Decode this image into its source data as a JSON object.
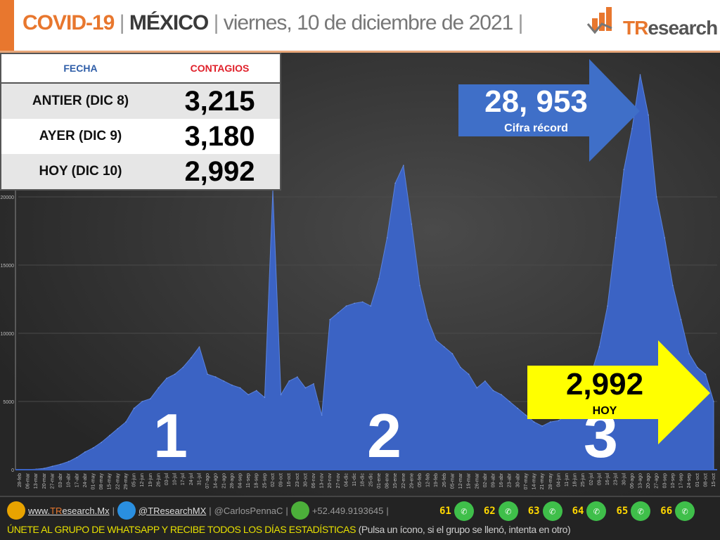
{
  "header": {
    "title_covid": "COVID-19",
    "sep": "|",
    "title_country": "MÉXICO",
    "date": "viernes, 10 de diciembre de 2021",
    "logo_text": "TResearch"
  },
  "table": {
    "col_date": "FECHA",
    "col_cases": "CONTAGIOS",
    "rows": [
      {
        "label": "ANTIER (DIC 8)",
        "value": "3,215"
      },
      {
        "label": "AYER (DIC 9)",
        "value": "3,180"
      },
      {
        "label": "HOY (DIC 10)",
        "value": "2,992"
      }
    ]
  },
  "annotations": {
    "record_value": "28, 953",
    "record_label": "Cifra récord",
    "today_value": "2,992",
    "today_label": "HOY",
    "wave1": "1",
    "wave2": "2",
    "wave3": "3"
  },
  "colors": {
    "accent": "#e8772e",
    "area": "#3b63c4",
    "record_arrow": "#3f6fc8",
    "today_arrow": "#ffff00"
  },
  "chart_data": {
    "type": "area",
    "title": "",
    "xlabel": "",
    "ylabel": "",
    "ylim": [
      0,
      30000
    ],
    "grid": true,
    "yticks": [
      0,
      5000,
      10000,
      15000,
      20000
    ],
    "categories": [
      "28-feb",
      "06-mar",
      "13-mar",
      "20-mar",
      "27-mar",
      "03-abr",
      "10-abr",
      "17-abr",
      "24-abr",
      "01-may",
      "08-may",
      "15-may",
      "22-may",
      "29-may",
      "05-jun",
      "12-jun",
      "19-jun",
      "26-jun",
      "03-jul",
      "10-jul",
      "17-jul",
      "24-jul",
      "31-jul",
      "07-ago",
      "14-ago",
      "21-ago",
      "28-ago",
      "04-sep",
      "11-sep",
      "18-sep",
      "25-sep",
      "02-oct",
      "09-oct",
      "16-oct",
      "23-oct",
      "30-oct",
      "06-nov",
      "13-nov",
      "20-nov",
      "27-nov",
      "04-dic",
      "11-dic",
      "18-dic",
      "25-dic",
      "01-ene",
      "08-ene",
      "15-ene",
      "22-ene",
      "29-ene",
      "05-feb",
      "12-feb",
      "19-feb",
      "26-feb",
      "05-mar",
      "12-mar",
      "19-mar",
      "26-mar",
      "02-abr",
      "09-abr",
      "16-abr",
      "23-abr",
      "30-abr",
      "07-may",
      "14-may",
      "21-may",
      "28-may",
      "04-jun",
      "11-jun",
      "18-jun",
      "25-jun",
      "02-jul",
      "09-jul",
      "16-jul",
      "23-jul",
      "30-jul",
      "06-ago",
      "13-ago",
      "20-ago",
      "27-ago",
      "03-sep",
      "10-sep",
      "17-sep",
      "24-sep",
      "01-oct",
      "08-oct",
      "15-oct"
    ],
    "values": [
      0,
      10,
      40,
      100,
      250,
      400,
      600,
      900,
      1300,
      1600,
      2000,
      2500,
      3000,
      3500,
      4500,
      5000,
      5200,
      6000,
      6700,
      7000,
      7500,
      8200,
      9000,
      7000,
      6800,
      6500,
      6200,
      6000,
      5500,
      5800,
      5300,
      20500,
      5500,
      6500,
      6800,
      6000,
      6300,
      4000,
      11000,
      11500,
      12000,
      12200,
      12300,
      12000,
      14000,
      17000,
      21000,
      22300,
      18000,
      13500,
      11000,
      9500,
      9000,
      8500,
      7500,
      7000,
      6000,
      6500,
      5800,
      5500,
      5000,
      4500,
      4000,
      3500,
      3200,
      3500,
      3600,
      4000,
      4500,
      5500,
      7000,
      9000,
      12000,
      17000,
      22000,
      25000,
      28953,
      26000,
      20000,
      17000,
      13500,
      11000,
      8500,
      7500,
      7000,
      5000
    ]
  },
  "footer": {
    "website_prefix": "www.",
    "website_tr": "TR",
    "website_rest": "esearch.Mx",
    "twitter": "@TResearchMX",
    "author": "@CarlosPennaC",
    "phone": "+52.449.9193645",
    "sep": "|",
    "groups": [
      "61",
      "62",
      "63",
      "64",
      "65",
      "66"
    ],
    "cta": "ÚNETE AL GRUPO DE WHATSAPP Y RECIBE TODOS LOS DÍAS ESTADÍSTICAS",
    "cta_note": "(Pulsa un ícono, si el grupo se llenó, intenta en otro)"
  }
}
